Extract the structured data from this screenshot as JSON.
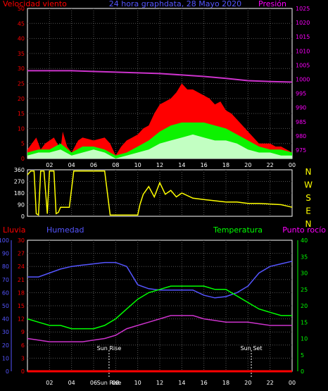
{
  "colors": {
    "background": "#000000",
    "frame": "#ffffff",
    "grid": "#555555",
    "red": "#ff0000",
    "blue": "#5555ff",
    "magenta": "#ff00ff",
    "green": "#00ff00",
    "yellow": "#ffff00",
    "white": "#ffffff",
    "lightgreen": "#ccffcc"
  },
  "chart_data": [
    {
      "type": "area",
      "title": "24 hora graphdata, 28 Mayo 2020",
      "left_label": "Velocidad viento",
      "right_label": "Presión",
      "left_ylim": [
        0,
        50
      ],
      "left_ticks": [
        "0",
        "5",
        "10",
        "15",
        "20",
        "25",
        "30",
        "35",
        "40",
        "45",
        "50"
      ],
      "right_ylim": [
        972,
        1025
      ],
      "right_ticks": [
        "975",
        "980",
        "985",
        "990",
        "995",
        "1000",
        "1005",
        "1010",
        "1015",
        "1020",
        "1025"
      ],
      "x_hours": [
        0,
        24
      ],
      "x_tick_labels": [
        "02",
        "04",
        "06",
        "08",
        "10",
        "12",
        "14",
        "16",
        "18",
        "20",
        "22",
        "00"
      ],
      "x_tick_hours": [
        2,
        4,
        6,
        8,
        10,
        12,
        14,
        16,
        18,
        20,
        22,
        24
      ],
      "series": [
        {
          "name": "gust",
          "color": "#ff0000",
          "x": [
            0,
            0.8,
            1.2,
            1.6,
            2.4,
            3.0,
            3.2,
            3.6,
            4.0,
            4.6,
            5.0,
            6.0,
            7.0,
            7.5,
            8.0,
            8.5,
            9.0,
            9.5,
            10.0,
            10.5,
            11.0,
            11.5,
            12.0,
            12.5,
            13.0,
            13.5,
            14.0,
            14.5,
            15.0,
            15.5,
            16.0,
            16.5,
            17.0,
            17.5,
            18.0,
            18.5,
            19.0,
            19.5,
            20.0,
            20.5,
            21.0,
            21.5,
            22.0,
            22.5,
            23.0,
            23.5,
            24.0
          ],
          "y": [
            3,
            7,
            3,
            5,
            7,
            3,
            9,
            4,
            2,
            6,
            7,
            6,
            7,
            5,
            1,
            4,
            6,
            7,
            8,
            10,
            11,
            15,
            18,
            19,
            20,
            22,
            25,
            23,
            23,
            22,
            21,
            20,
            18,
            19,
            16,
            15,
            13,
            11,
            9,
            7,
            5,
            5,
            5,
            4,
            4,
            3,
            2
          ]
        },
        {
          "name": "mean",
          "color": "#00ff00",
          "x": [
            0,
            1,
            2,
            3,
            4,
            5,
            6,
            7,
            8,
            9,
            10,
            11,
            12,
            13,
            14,
            15,
            16,
            17,
            18,
            19,
            20,
            21,
            22,
            23,
            24
          ],
          "y": [
            2,
            3,
            3,
            5,
            2,
            4,
            4,
            3,
            1,
            2,
            4,
            6,
            9,
            11,
            12,
            12,
            12,
            11,
            10,
            8,
            6,
            4,
            3,
            3,
            2
          ]
        },
        {
          "name": "wind",
          "color": "#ccffcc",
          "x": [
            0,
            1,
            2,
            3,
            4,
            5,
            6,
            7,
            8,
            9,
            10,
            11,
            12,
            13,
            14,
            15,
            16,
            17,
            18,
            19,
            20,
            21,
            22,
            23,
            24
          ],
          "y": [
            1,
            2,
            2,
            3,
            1,
            2,
            3,
            2,
            0,
            1,
            2,
            3,
            5,
            6,
            7,
            8,
            7,
            6,
            6,
            5,
            3,
            2,
            2,
            1,
            1
          ]
        },
        {
          "name": "pressure",
          "color": "#cc33cc",
          "x": [
            0,
            4,
            8,
            12,
            14,
            16,
            18,
            20,
            22,
            24
          ],
          "y": [
            1003,
            1003,
            1002.5,
            1002,
            1001.5,
            1001,
            1000.3,
            999.5,
            999.2,
            999
          ]
        }
      ]
    },
    {
      "type": "line",
      "ylim": [
        0,
        360
      ],
      "left_ticks": [
        "0",
        "90",
        "180",
        "270",
        "360"
      ],
      "right_ticks": [
        "N",
        "W",
        "S",
        "E",
        "N"
      ],
      "x_hours": [
        0,
        24
      ],
      "series": [
        {
          "name": "direction",
          "color": "#ffff00",
          "x": [
            0,
            0.3,
            0.6,
            0.8,
            1.0,
            1.2,
            1.5,
            1.8,
            2.0,
            2.4,
            2.6,
            2.8,
            3.0,
            3.3,
            3.6,
            3.8,
            4.2,
            5.0,
            6.0,
            7.0,
            7.5,
            8.0,
            9.0,
            10.0,
            10.2,
            10.5,
            11.0,
            11.5,
            12.0,
            12.5,
            13.0,
            13.5,
            14.0,
            15.0,
            16.0,
            17.0,
            18.0,
            19.0,
            20.0,
            21.0,
            22.0,
            23.0,
            23.5,
            24.0
          ],
          "y": [
            320,
            350,
            350,
            20,
            10,
            350,
            350,
            20,
            350,
            350,
            20,
            30,
            70,
            70,
            70,
            70,
            350,
            350,
            350,
            350,
            10,
            10,
            10,
            10,
            90,
            170,
            230,
            150,
            260,
            170,
            200,
            150,
            180,
            140,
            130,
            120,
            110,
            110,
            100,
            100,
            95,
            90,
            80,
            70
          ]
        }
      ]
    },
    {
      "type": "line",
      "labels": {
        "rain": "Lluvia",
        "humidity": "Humedad",
        "temperature": "Temperatura",
        "dewpoint": "Punto rocío"
      },
      "humidity_ticks": [
        "0",
        "10",
        "20",
        "30",
        "40",
        "50",
        "60",
        "70",
        "80",
        "90",
        "100"
      ],
      "rain_ticks": [
        "0",
        "3",
        "6",
        "9",
        "12",
        "15",
        "18",
        "21",
        "24",
        "27",
        "30"
      ],
      "temp_ticks": [
        "0",
        "5",
        "10",
        "15",
        "20",
        "25",
        "30",
        "35",
        "40"
      ],
      "x_tick_labels": [
        "02",
        "04",
        "06",
        "08",
        "10",
        "12",
        "14",
        "16",
        "18",
        "20",
        "22",
        "00"
      ],
      "x_tick_hours": [
        2,
        4,
        6,
        8,
        10,
        12,
        14,
        16,
        18,
        20,
        22,
        24
      ],
      "sun_markers": [
        {
          "label": "Sun Rise",
          "hour": 7.4
        },
        {
          "label": "Sun Set",
          "hour": 20.3
        }
      ],
      "sunrise_axis_label": "Sun Rise",
      "series": [
        {
          "name": "humidity",
          "color": "#5555ff",
          "scale": "humidity",
          "x": [
            0,
            1,
            2,
            3,
            4,
            5,
            6,
            7,
            8,
            9,
            10,
            11,
            12,
            13,
            14,
            15,
            16,
            17,
            18,
            19,
            20,
            21,
            22,
            23,
            24
          ],
          "y": [
            72,
            72,
            75,
            78,
            80,
            81,
            82,
            83,
            83,
            80,
            66,
            63,
            62,
            62,
            62,
            62,
            58,
            56,
            57,
            60,
            65,
            75,
            80,
            82,
            84
          ]
        },
        {
          "name": "temperature",
          "color": "#00ff00",
          "scale": "temp",
          "x": [
            0,
            1,
            2,
            3,
            4,
            5,
            6,
            7,
            8,
            9,
            10,
            11,
            12,
            13,
            14,
            15,
            16,
            17,
            18,
            19,
            20,
            21,
            22,
            23,
            24
          ],
          "y": [
            16,
            15,
            14,
            14,
            13,
            13,
            13,
            14,
            16,
            19,
            22,
            24,
            25,
            26,
            26,
            26,
            26,
            25,
            25,
            23,
            21,
            19,
            18,
            17,
            17
          ]
        },
        {
          "name": "dewpoint",
          "color": "#cc33cc",
          "scale": "temp",
          "x": [
            0,
            1,
            2,
            3,
            4,
            5,
            6,
            7,
            8,
            9,
            10,
            11,
            12,
            13,
            14,
            15,
            16,
            17,
            18,
            19,
            20,
            21,
            22,
            23,
            24
          ],
          "y": [
            10,
            9.5,
            9,
            9,
            9,
            9,
            9.5,
            10,
            11,
            13,
            14,
            15,
            16,
            17,
            17,
            17,
            16,
            15.5,
            15,
            15,
            15,
            14.5,
            14,
            14,
            14
          ]
        },
        {
          "name": "rain",
          "color": "#ff0000",
          "scale": "rain",
          "x": [
            0,
            24
          ],
          "y": [
            0,
            0
          ]
        }
      ]
    }
  ]
}
